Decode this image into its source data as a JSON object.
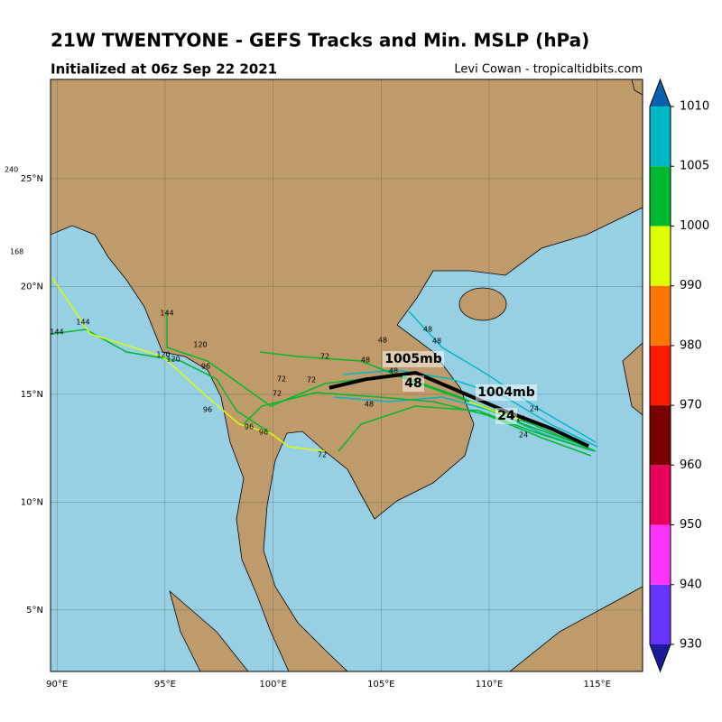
{
  "chart_data": {
    "type": "map",
    "title": "21W TWENTYONE - GEFS Tracks and Min. MSLP (hPa)",
    "subtitle": "Initialized at 06z Sep 22 2021",
    "credit": "Levi Cowan - tropicaltidbits.com",
    "xlim": [
      89.7,
      117.1
    ],
    "ylim": [
      2.15,
      29.6
    ],
    "xticks": [
      {
        "value": 90,
        "label": "90°E"
      },
      {
        "value": 95,
        "label": "95°E"
      },
      {
        "value": 100,
        "label": "100°E"
      },
      {
        "value": 105,
        "label": "105°E"
      },
      {
        "value": 110,
        "label": "110°E"
      },
      {
        "value": 115,
        "label": "115°E"
      }
    ],
    "yticks": [
      {
        "value": 5,
        "label": "5°N"
      },
      {
        "value": 10,
        "label": "10°N"
      },
      {
        "value": 15,
        "label": "15°N"
      },
      {
        "value": 20,
        "label": "20°N"
      },
      {
        "value": 25,
        "label": "25°N"
      }
    ],
    "grid": true,
    "mean_track": {
      "color": "#000000",
      "lon": [
        102.6,
        104.3,
        106.6,
        108.7,
        110.8,
        112.9,
        114.6
      ],
      "lat": [
        15.3,
        15.7,
        16.0,
        15.1,
        14.2,
        13.4,
        12.6
      ]
    },
    "annotations": [
      "1005mb",
      "48",
      "1004mb",
      "24"
    ],
    "track_labels": [
      "144",
      "144",
      "144",
      "120",
      "120",
      "120",
      "96",
      "96",
      "96",
      "96",
      "72",
      "72",
      "72",
      "72",
      "72",
      "48",
      "48",
      "48",
      "48",
      "48",
      "48",
      "24",
      "24",
      "24"
    ],
    "margin_labels": [
      "240",
      "168"
    ],
    "colorbar": {
      "ticks": [
        930,
        940,
        950,
        960,
        970,
        980,
        990,
        1000,
        1005,
        1010
      ],
      "colors": [
        "#6633ff",
        "#ff33ff",
        "#e6005c",
        "#7a0000",
        "#ff1a00",
        "#ff7700",
        "#ddff00",
        "#00b82e",
        "#00b7c3"
      ],
      "under_color": "#1a1a9a",
      "over_color": "#0b5fb0"
    }
  }
}
